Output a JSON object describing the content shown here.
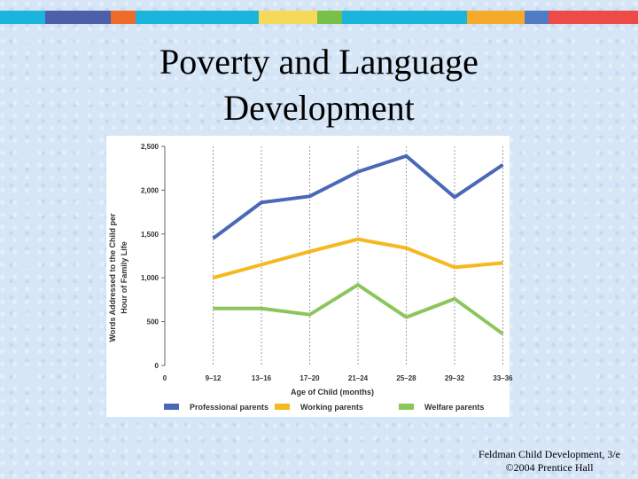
{
  "slide": {
    "title_line1": "Poverty and Language",
    "title_line2": "Development",
    "footer_line1": "Feldman Child Development, 3/e",
    "footer_line2": "©2004 Prentice Hall",
    "stripe_colors": [
      "#1ab4dc",
      "#4d5fa8",
      "#f06a2a",
      "#1ab4dc",
      "#f7d95a",
      "#79c04a",
      "#1ab4dc",
      "#f5aa2a",
      "#4f7cc4",
      "#ee4a48"
    ]
  },
  "chart_data": {
    "type": "line",
    "title": "",
    "xlabel": "Age of Child (months)",
    "ylabel": "Words Addressed to the Child per Hour of Family Life",
    "ylabel_line1": "Words Addressed to the Child per",
    "ylabel_line2": "Hour of Family Life",
    "categories": [
      "0",
      "9–12",
      "13–16",
      "17–20",
      "21–24",
      "25–28",
      "29–32",
      "33–36"
    ],
    "yticks": [
      "0",
      "500",
      "1,000",
      "1,500",
      "2,000",
      "2,500"
    ],
    "ylim": [
      0,
      2500
    ],
    "grid": "vertical dashed lines at categories",
    "legend_position": "bottom",
    "series": [
      {
        "name": "Professional parents",
        "color": "#4a68b8",
        "values": [
          null,
          1450,
          1860,
          1930,
          2210,
          2390,
          1920,
          2290
        ]
      },
      {
        "name": "Working parents",
        "color": "#f5b81e",
        "values": [
          null,
          1000,
          1150,
          1300,
          1440,
          1340,
          1120,
          1170
        ]
      },
      {
        "name": "Welfare parents",
        "color": "#8cc65a",
        "values": [
          null,
          650,
          650,
          580,
          920,
          550,
          760,
          360
        ]
      }
    ]
  }
}
